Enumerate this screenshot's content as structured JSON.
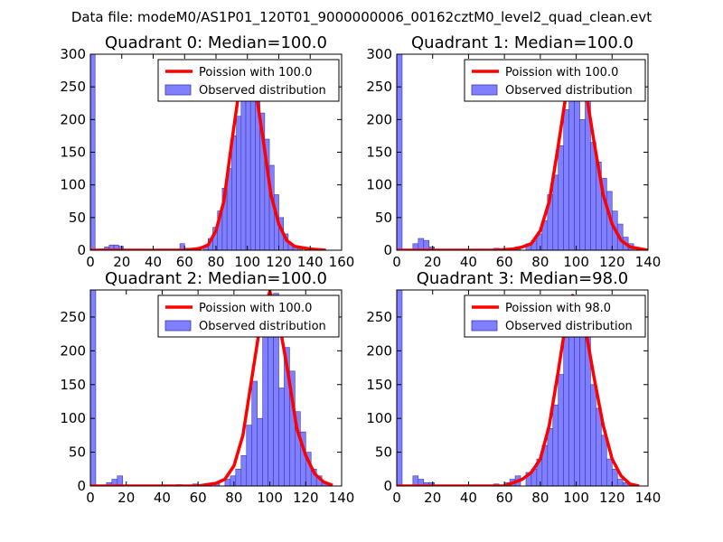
{
  "figure_title": "Data file: modeM0/AS1P01_120T01_9000000006_00162cztM0_level2_quad_clean.evt",
  "colors": {
    "bar_fill": "#7f7fff",
    "bar_edge": "#3a3ab0",
    "poisson_line": "#ff0000"
  },
  "legend": {
    "observed_label": "Observed distribution"
  },
  "chart_data": [
    {
      "type": "bar",
      "title": "Quadrant 0: Median=100.0",
      "poisson_label": "Poission with 100.0",
      "xlim": [
        0,
        160
      ],
      "ylim": [
        0,
        300
      ],
      "xticks": [
        0,
        20,
        40,
        60,
        80,
        100,
        120,
        140,
        160
      ],
      "yticks": [
        0,
        50,
        100,
        150,
        200,
        250,
        300
      ],
      "bin_width": 3,
      "bins": [
        [
          0,
          300
        ],
        [
          6,
          2
        ],
        [
          9,
          5
        ],
        [
          12,
          8
        ],
        [
          15,
          8
        ],
        [
          18,
          6
        ],
        [
          57,
          10
        ],
        [
          60,
          3
        ],
        [
          72,
          5
        ],
        [
          75,
          18
        ],
        [
          78,
          35
        ],
        [
          81,
          60
        ],
        [
          84,
          95
        ],
        [
          87,
          125
        ],
        [
          90,
          175
        ],
        [
          93,
          205
        ],
        [
          96,
          240
        ],
        [
          99,
          255
        ],
        [
          102,
          290
        ],
        [
          105,
          260
        ],
        [
          108,
          210
        ],
        [
          111,
          170
        ],
        [
          114,
          130
        ],
        [
          117,
          85
        ],
        [
          120,
          50
        ],
        [
          123,
          25
        ],
        [
          126,
          10
        ],
        [
          129,
          5
        ],
        [
          132,
          2
        ]
      ],
      "poisson_curve": [
        [
          0,
          0
        ],
        [
          60,
          0
        ],
        [
          70,
          3
        ],
        [
          75,
          8
        ],
        [
          80,
          30
        ],
        [
          85,
          75
        ],
        [
          90,
          165
        ],
        [
          95,
          250
        ],
        [
          100,
          290
        ],
        [
          105,
          250
        ],
        [
          110,
          170
        ],
        [
          115,
          85
        ],
        [
          120,
          40
        ],
        [
          125,
          15
        ],
        [
          130,
          6
        ],
        [
          140,
          2
        ],
        [
          150,
          0
        ]
      ]
    },
    {
      "type": "bar",
      "title": "Quadrant 1: Median=100.0",
      "poisson_label": "Poission with 100.0",
      "xlim": [
        0,
        140
      ],
      "ylim": [
        0,
        300
      ],
      "xticks": [
        0,
        20,
        40,
        60,
        80,
        100,
        120,
        140
      ],
      "yticks": [
        0,
        50,
        100,
        150,
        200,
        250,
        300
      ],
      "bin_width": 3,
      "bins": [
        [
          0,
          300
        ],
        [
          9,
          10
        ],
        [
          12,
          18
        ],
        [
          15,
          15
        ],
        [
          18,
          5
        ],
        [
          54,
          3
        ],
        [
          66,
          5
        ],
        [
          72,
          10
        ],
        [
          75,
          15
        ],
        [
          78,
          25
        ],
        [
          81,
          45
        ],
        [
          84,
          85
        ],
        [
          87,
          115
        ],
        [
          90,
          160
        ],
        [
          93,
          215
        ],
        [
          96,
          265
        ],
        [
          99,
          290
        ],
        [
          102,
          200
        ],
        [
          105,
          260
        ],
        [
          108,
          165
        ],
        [
          111,
          135
        ],
        [
          114,
          110
        ],
        [
          117,
          90
        ],
        [
          120,
          60
        ],
        [
          123,
          40
        ],
        [
          126,
          20
        ],
        [
          129,
          10
        ]
      ],
      "poisson_curve": [
        [
          0,
          0
        ],
        [
          55,
          0
        ],
        [
          65,
          2
        ],
        [
          70,
          5
        ],
        [
          75,
          10
        ],
        [
          80,
          30
        ],
        [
          85,
          75
        ],
        [
          90,
          160
        ],
        [
          95,
          250
        ],
        [
          100,
          290
        ],
        [
          105,
          250
        ],
        [
          110,
          165
        ],
        [
          115,
          85
        ],
        [
          120,
          40
        ],
        [
          125,
          15
        ],
        [
          130,
          5
        ],
        [
          140,
          0
        ]
      ]
    },
    {
      "type": "bar",
      "title": "Quadrant 2: Median=100.0",
      "poisson_label": "Poission with 100.0",
      "xlim": [
        0,
        140
      ],
      "ylim": [
        0,
        290
      ],
      "xticks": [
        0,
        20,
        40,
        60,
        80,
        100,
        120,
        140
      ],
      "yticks": [
        0,
        50,
        100,
        150,
        200,
        250
      ],
      "bin_width": 3,
      "bins": [
        [
          0,
          300
        ],
        [
          9,
          5
        ],
        [
          12,
          10
        ],
        [
          15,
          15
        ],
        [
          48,
          2
        ],
        [
          57,
          3
        ],
        [
          63,
          3
        ],
        [
          69,
          5
        ],
        [
          75,
          10
        ],
        [
          78,
          15
        ],
        [
          81,
          25
        ],
        [
          84,
          45
        ],
        [
          87,
          90
        ],
        [
          90,
          155
        ],
        [
          93,
          100
        ],
        [
          96,
          245
        ],
        [
          99,
          265
        ],
        [
          102,
          285
        ],
        [
          105,
          145
        ],
        [
          108,
          205
        ],
        [
          111,
          170
        ],
        [
          114,
          110
        ],
        [
          117,
          80
        ],
        [
          120,
          50
        ],
        [
          123,
          25
        ],
        [
          126,
          15
        ],
        [
          129,
          5
        ]
      ],
      "poisson_curve": [
        [
          0,
          0
        ],
        [
          60,
          0
        ],
        [
          70,
          4
        ],
        [
          75,
          10
        ],
        [
          80,
          30
        ],
        [
          85,
          75
        ],
        [
          90,
          160
        ],
        [
          95,
          245
        ],
        [
          100,
          288
        ],
        [
          105,
          245
        ],
        [
          110,
          170
        ],
        [
          115,
          85
        ],
        [
          120,
          45
        ],
        [
          125,
          18
        ],
        [
          130,
          6
        ],
        [
          135,
          1
        ]
      ]
    },
    {
      "type": "bar",
      "title": "Quadrant 3: Median=98.0",
      "poisson_label": "Poission with 98.0",
      "xlim": [
        0,
        140
      ],
      "ylim": [
        0,
        290
      ],
      "xticks": [
        0,
        20,
        40,
        60,
        80,
        100,
        120,
        140
      ],
      "yticks": [
        0,
        50,
        100,
        150,
        200,
        250
      ],
      "bin_width": 3,
      "bins": [
        [
          0,
          290
        ],
        [
          9,
          15
        ],
        [
          12,
          10
        ],
        [
          15,
          5
        ],
        [
          18,
          5
        ],
        [
          54,
          3
        ],
        [
          60,
          5
        ],
        [
          63,
          10
        ],
        [
          66,
          15
        ],
        [
          72,
          20
        ],
        [
          75,
          25
        ],
        [
          78,
          40
        ],
        [
          81,
          60
        ],
        [
          84,
          85
        ],
        [
          87,
          120
        ],
        [
          90,
          165
        ],
        [
          93,
          220
        ],
        [
          96,
          255
        ],
        [
          99,
          280
        ],
        [
          102,
          275
        ],
        [
          105,
          225
        ],
        [
          108,
          150
        ],
        [
          111,
          115
        ],
        [
          114,
          75
        ],
        [
          117,
          40
        ],
        [
          120,
          25
        ],
        [
          123,
          10
        ],
        [
          126,
          5
        ]
      ],
      "poisson_curve": [
        [
          0,
          0
        ],
        [
          60,
          0
        ],
        [
          65,
          5
        ],
        [
          70,
          10
        ],
        [
          75,
          20
        ],
        [
          80,
          40
        ],
        [
          85,
          90
        ],
        [
          90,
          170
        ],
        [
          95,
          255
        ],
        [
          98,
          282
        ],
        [
          100,
          275
        ],
        [
          105,
          235
        ],
        [
          110,
          160
        ],
        [
          115,
          90
        ],
        [
          120,
          40
        ],
        [
          125,
          15
        ],
        [
          130,
          3
        ],
        [
          135,
          0
        ]
      ]
    }
  ]
}
